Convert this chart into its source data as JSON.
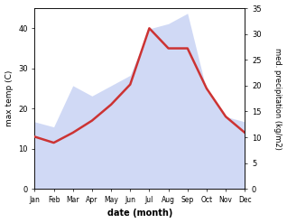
{
  "months": [
    "Jan",
    "Feb",
    "Mar",
    "Apr",
    "May",
    "Jun",
    "Jul",
    "Aug",
    "Sep",
    "Oct",
    "Nov",
    "Dec"
  ],
  "temp": [
    13,
    11.5,
    14,
    17,
    21,
    26,
    40,
    35,
    35,
    25,
    18,
    14
  ],
  "precip": [
    13,
    12,
    20,
    18,
    20,
    22,
    31,
    32,
    34,
    19,
    14,
    13
  ],
  "temp_color": "#cc3333",
  "precip_color": "#aabbee",
  "precip_fill_alpha": 0.55,
  "temp_ylim": [
    0,
    45
  ],
  "precip_ylim": [
    0,
    35
  ],
  "temp_yticks": [
    0,
    10,
    20,
    30,
    40
  ],
  "precip_yticks": [
    0,
    5,
    10,
    15,
    20,
    25,
    30,
    35
  ],
  "ylabel_left": "max temp (C)",
  "ylabel_right": "med. precipitation (kg/m2)",
  "xlabel": "date (month)",
  "bg_color": "#ffffff"
}
